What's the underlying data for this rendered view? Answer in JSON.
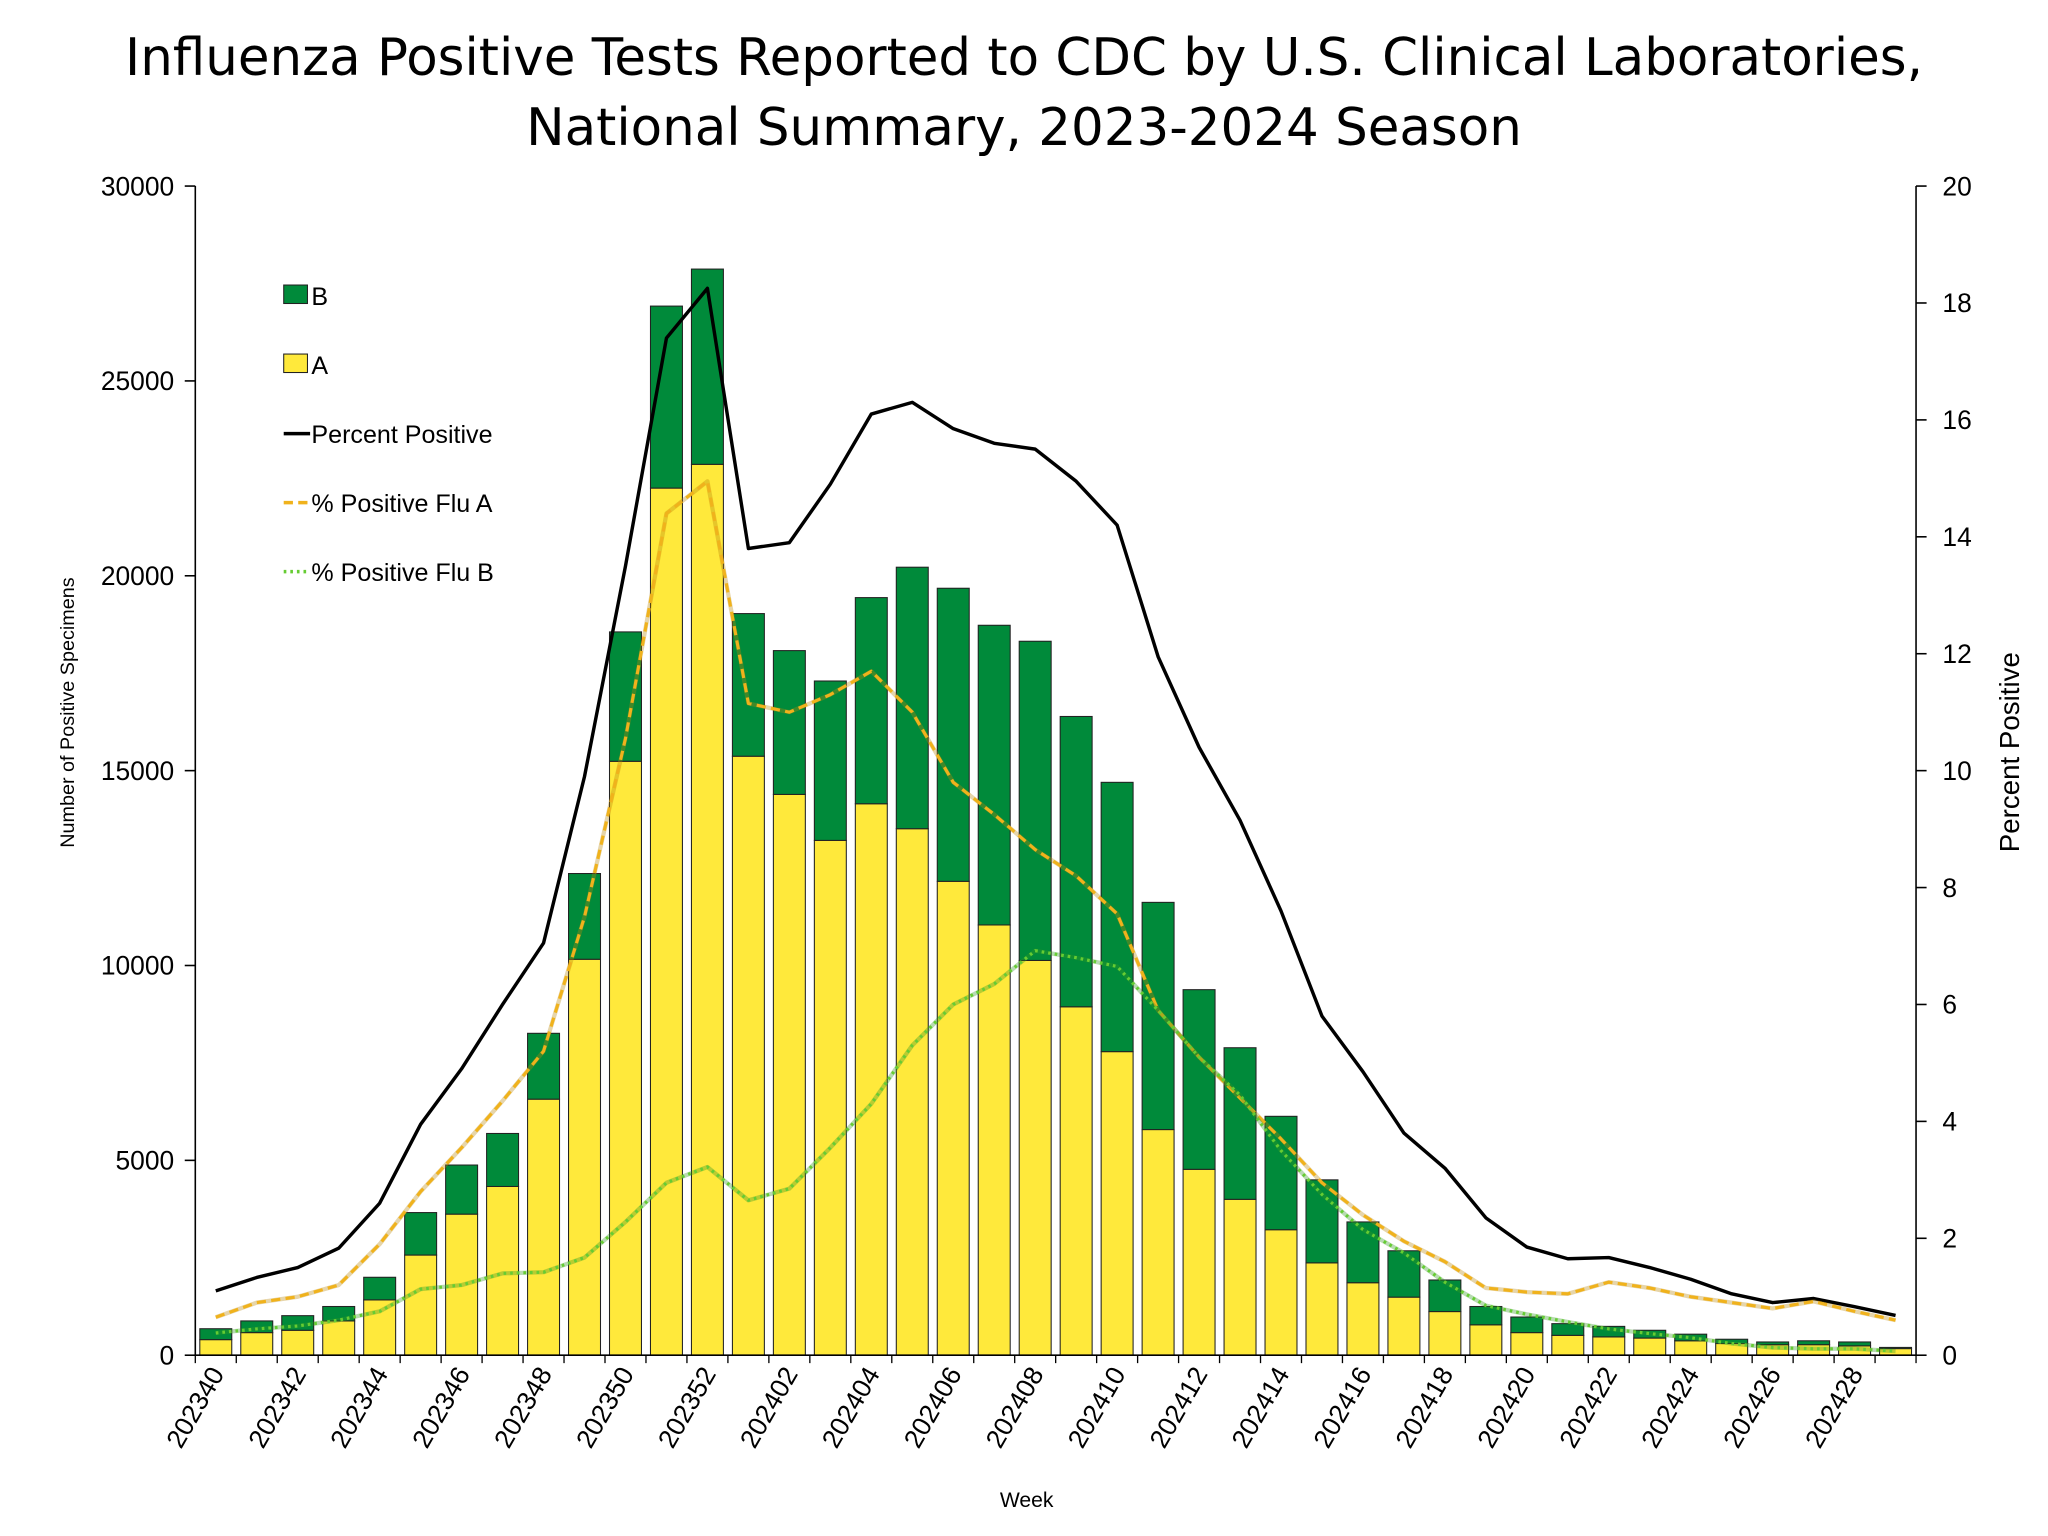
{
  "chart_data": {
    "type": "bar",
    "stacked": true,
    "title": [
      "Influenza Positive Tests Reported to CDC by U.S. Clinical Laboratories,",
      "National Summary, 2023-2024 Season"
    ],
    "x_label": "Week",
    "y_label": "Number of Positive Specimens",
    "y2_label": "Percent Positive",
    "categories": [
      "202340",
      null,
      "202342",
      null,
      "202344",
      null,
      "202346",
      null,
      "202348",
      null,
      "202350",
      null,
      "202352",
      null,
      "202402",
      null,
      "202404",
      null,
      "202406",
      null,
      "202408",
      null,
      "202410",
      null,
      "202412",
      null,
      "202414",
      null,
      "202416",
      null,
      "202418",
      null,
      "202420",
      null,
      "202422",
      null,
      "202424",
      null,
      "202426",
      null,
      "202428",
      null
    ],
    "series": [
      {
        "name": "B",
        "type": "bar",
        "color": "#008a3a",
        "values": [
          280,
          300,
          375,
          370,
          580,
          1090,
          1260,
          1360,
          1690,
          2200,
          3320,
          4670,
          5010,
          3660,
          3690,
          4090,
          5290,
          6710,
          7520,
          7690,
          8190,
          7450,
          6910,
          5830,
          4610,
          3890,
          2910,
          2130,
          1560,
          1190,
          810,
          470,
          400,
          300,
          270,
          200,
          170,
          110,
          70,
          100,
          100,
          30
        ]
      },
      {
        "name": "A",
        "type": "bar",
        "color": "#ffe93b",
        "values": [
          400,
          580,
          640,
          880,
          1420,
          2570,
          3620,
          4330,
          6570,
          10160,
          15240,
          22250,
          22860,
          15370,
          14390,
          13210,
          14150,
          13510,
          12160,
          11040,
          10130,
          8940,
          7790,
          5790,
          4770,
          4000,
          3220,
          2370,
          1860,
          1490,
          1120,
          780,
          580,
          510,
          470,
          440,
          370,
          300,
          270,
          270,
          240,
          170
        ]
      },
      {
        "name": "Percent Positive",
        "type": "line",
        "axis": "y2",
        "color": "#000000",
        "dash": "solid",
        "values": [
          1.1,
          1.33,
          1.5,
          1.83,
          2.6,
          3.95,
          4.9,
          6.0,
          7.05,
          9.9,
          13.5,
          17.4,
          18.25,
          13.8,
          13.9,
          14.9,
          16.1,
          16.3,
          15.85,
          15.6,
          15.5,
          14.95,
          14.2,
          11.95,
          10.4,
          9.15,
          7.6,
          5.8,
          4.85,
          3.8,
          3.2,
          2.35,
          1.85,
          1.65,
          1.67,
          1.5,
          1.3,
          1.05,
          0.9,
          0.97,
          0.83,
          0.68
        ]
      },
      {
        "name": "% Positive Flu A",
        "type": "line",
        "axis": "y2",
        "color": "#f0b21c",
        "dash": "dashed",
        "values": [
          0.65,
          0.9,
          1.0,
          1.2,
          1.9,
          2.8,
          3.55,
          4.35,
          5.2,
          7.5,
          10.55,
          14.4,
          14.95,
          11.15,
          11.0,
          11.3,
          11.7,
          11.0,
          9.8,
          9.25,
          8.65,
          8.2,
          7.55,
          5.9,
          5.1,
          4.4,
          3.7,
          2.95,
          2.4,
          1.95,
          1.6,
          1.15,
          1.08,
          1.05,
          1.25,
          1.15,
          1.0,
          0.9,
          0.8,
          0.92,
          0.75,
          0.6
        ]
      },
      {
        "name": "% Positive Flu B",
        "type": "line",
        "axis": "y2",
        "color": "#66cc33",
        "dash": "dotted",
        "values": [
          0.38,
          0.45,
          0.5,
          0.6,
          0.75,
          1.13,
          1.2,
          1.4,
          1.42,
          1.67,
          2.28,
          2.95,
          3.22,
          2.65,
          2.85,
          3.55,
          4.3,
          5.3,
          6.0,
          6.35,
          6.92,
          6.8,
          6.65,
          5.9,
          5.1,
          4.45,
          3.5,
          2.75,
          2.15,
          1.75,
          1.25,
          0.85,
          0.7,
          0.57,
          0.45,
          0.37,
          0.3,
          0.2,
          0.13,
          0.11,
          0.11,
          0.07
        ]
      }
    ],
    "ylim": [
      0,
      30000
    ],
    "yticks": [
      0,
      5000,
      10000,
      15000,
      20000,
      25000,
      30000
    ],
    "y2lim": [
      0,
      20
    ],
    "y2ticks": [
      0,
      2,
      4,
      6,
      8,
      10,
      12,
      14,
      16,
      18,
      20
    ],
    "grid": false,
    "legend": "upper-left"
  }
}
